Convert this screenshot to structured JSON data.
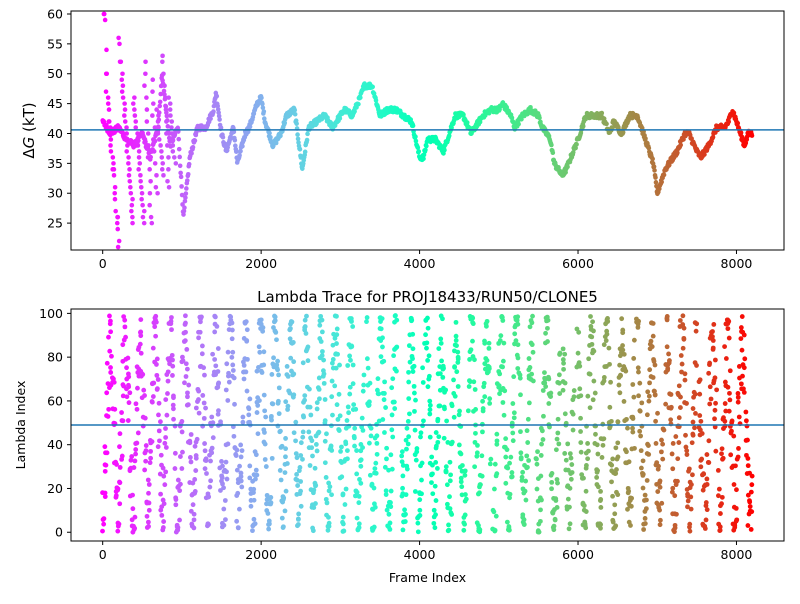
{
  "chart_data": [
    {
      "type": "scatter",
      "title": "",
      "xlabel": "",
      "ylabel": "ΔG (kT)",
      "xlim": [
        -400,
        8600
      ],
      "ylim": [
        20.5,
        60.5
      ],
      "xticks": [
        0,
        2000,
        4000,
        6000,
        8000
      ],
      "yticks": [
        25,
        30,
        35,
        40,
        45,
        50,
        55,
        60
      ],
      "xtick_labels": [
        "0",
        "2000",
        "4000",
        "6000",
        "8000"
      ],
      "ytick_labels": [
        "25",
        "30",
        "35",
        "40",
        "45",
        "50",
        "55",
        "60"
      ],
      "hline": {
        "y": 40.6,
        "color": "#1f77b4"
      },
      "grid": false,
      "colormap": "rainbow (red at frame 0 → violet at last frame)",
      "n_frames": 8200,
      "trace_x": [
        0,
        100,
        200,
        300,
        400,
        500,
        600,
        700,
        750,
        850,
        950,
        1020,
        1100,
        1200,
        1300,
        1400,
        1430,
        1500,
        1560,
        1650,
        1700,
        1800,
        1850,
        1950,
        2000,
        2050,
        2150,
        2250,
        2320,
        2420,
        2520,
        2600,
        2700,
        2800,
        2900,
        3000,
        3050,
        3150,
        3250,
        3300,
        3400,
        3500,
        3600,
        3700,
        3800,
        3900,
        4000,
        4050,
        4100,
        4200,
        4300,
        4400,
        4450,
        4550,
        4650,
        4700,
        4800,
        4900,
        5000,
        5050,
        5150,
        5200,
        5300,
        5400,
        5500,
        5550,
        5650,
        5700,
        5800,
        5850,
        6000,
        6100,
        6200,
        6300,
        6400,
        6450,
        6550,
        6650,
        6750,
        6850,
        6950,
        7000,
        7100,
        7150,
        7250,
        7350,
        7400,
        7500,
        7550,
        7650,
        7750,
        7850,
        7900,
        7950,
        8000,
        8100,
        8150
      ],
      "trace_y": [
        42,
        40,
        41,
        39,
        38,
        40,
        36,
        41,
        50,
        38,
        41,
        26,
        36,
        41,
        41,
        44,
        47,
        40,
        37,
        41,
        35,
        40,
        41,
        45,
        46,
        42,
        38,
        40,
        43,
        44,
        34,
        41,
        42,
        43,
        41,
        43,
        44,
        43,
        46,
        48,
        48,
        43,
        44,
        44,
        43,
        42,
        36,
        36,
        39,
        39,
        37,
        41,
        43,
        43,
        40,
        41,
        43,
        44,
        44,
        45,
        43,
        41,
        43,
        44,
        43,
        41,
        39,
        35,
        33,
        34,
        39,
        43,
        43,
        43,
        40,
        42,
        40,
        43,
        43,
        39,
        35,
        30,
        34,
        35,
        37,
        40,
        40,
        37,
        36,
        38,
        41,
        41,
        42,
        44,
        42,
        38,
        40
      ],
      "noise_kT": 0.45,
      "early_scatter_y": [
        60,
        60,
        59,
        54,
        50,
        50,
        47,
        46,
        45,
        44,
        42,
        42,
        41,
        40,
        39,
        38,
        37,
        36,
        35,
        34,
        34,
        33,
        31,
        30,
        29,
        27,
        26,
        26,
        25,
        24,
        22,
        21,
        56,
        55,
        52,
        52,
        50,
        49,
        48,
        47,
        46,
        45,
        44,
        43,
        42,
        41,
        40,
        39,
        38,
        37,
        36,
        35,
        34,
        33,
        32,
        31,
        30,
        29,
        28,
        27,
        26,
        25,
        46,
        45,
        44,
        43,
        42,
        41,
        40,
        39,
        38,
        37,
        36,
        35,
        34,
        33,
        32,
        31,
        30,
        29,
        28,
        27,
        26,
        25,
        52,
        50,
        48,
        46,
        44,
        42,
        40,
        38,
        36,
        34,
        32,
        30,
        28,
        26,
        25,
        49,
        47,
        45,
        43,
        41,
        39,
        37,
        35,
        33,
        31,
        30,
        44,
        43,
        42,
        41,
        40,
        39,
        38,
        37,
        36,
        35,
        34,
        33,
        53,
        52,
        50,
        48,
        46,
        44,
        42,
        40,
        38,
        36,
        34,
        32,
        31,
        46,
        45,
        44,
        43,
        42,
        41,
        40,
        39,
        38,
        37,
        36,
        35
      ]
    },
    {
      "type": "scatter",
      "title": "Lambda Trace for PROJ18433/RUN50/CLONE5",
      "xlabel": "Frame Index",
      "ylabel": "Lambda Index",
      "xlim": [
        -400,
        8600
      ],
      "ylim": [
        -4,
        102
      ],
      "xticks": [
        0,
        2000,
        4000,
        6000,
        8000
      ],
      "yticks": [
        0,
        20,
        40,
        60,
        80,
        100
      ],
      "xtick_labels": [
        "0",
        "2000",
        "4000",
        "6000",
        "8000"
      ],
      "ytick_labels": [
        "0",
        "20",
        "40",
        "60",
        "80",
        "100"
      ],
      "hline": {
        "y": 49,
        "color": "#1f77b4"
      },
      "grid": false,
      "colormap": "rainbow (red at frame 0 → violet at last frame)",
      "n_frames": 8200,
      "value_range": [
        0,
        99
      ],
      "sweep_period_frames": 95,
      "gap_frames": [
        [
          3300,
          3330
        ],
        [
          3720,
          3760
        ],
        [
          4050,
          4070
        ],
        [
          4590,
          4620
        ],
        [
          4900,
          4930
        ],
        [
          5440,
          5470
        ],
        [
          5780,
          5800
        ],
        [
          5950,
          5990
        ],
        [
          6720,
          6740
        ],
        [
          7080,
          7100
        ],
        [
          7500,
          7520
        ],
        [
          7750,
          7770
        ]
      ]
    }
  ]
}
